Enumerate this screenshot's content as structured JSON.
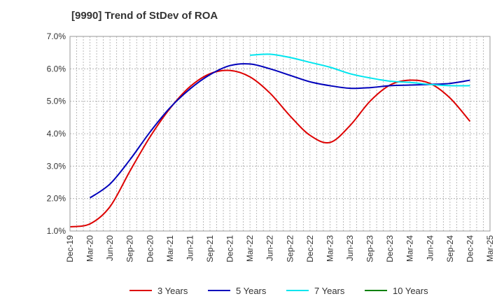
{
  "chart_data": {
    "type": "line",
    "title": "[9990]  Trend of StDev of ROA",
    "xlabel": "",
    "ylabel": "",
    "ylim": [
      1.0,
      7.0
    ],
    "y_ticks": [
      "1.0%",
      "2.0%",
      "3.0%",
      "4.0%",
      "5.0%",
      "6.0%",
      "7.0%"
    ],
    "y_tick_values": [
      1,
      2,
      3,
      4,
      5,
      6,
      7
    ],
    "x_ticks": [
      "Dec-19",
      "Mar-20",
      "Jun-20",
      "Sep-20",
      "Dec-20",
      "Mar-21",
      "Jun-21",
      "Sep-21",
      "Dec-21",
      "Mar-22",
      "Jun-22",
      "Sep-22",
      "Dec-22",
      "Mar-23",
      "Jun-23",
      "Sep-23",
      "Dec-23",
      "Mar-24",
      "Jun-24",
      "Sep-24",
      "Dec-24",
      "Mar-25"
    ],
    "grid": true,
    "legend_position": "bottom",
    "series": [
      {
        "name": "3 Years",
        "color": "#dd0000",
        "points": [
          [
            "Dec-19",
            1.13
          ],
          [
            "Mar-20",
            1.22
          ],
          [
            "Jun-20",
            1.75
          ],
          [
            "Sep-20",
            2.85
          ],
          [
            "Dec-20",
            3.9
          ],
          [
            "Mar-21",
            4.78
          ],
          [
            "Jun-21",
            5.45
          ],
          [
            "Sep-21",
            5.85
          ],
          [
            "Dec-21",
            5.95
          ],
          [
            "Mar-22",
            5.75
          ],
          [
            "Jun-22",
            5.25
          ],
          [
            "Sep-22",
            4.55
          ],
          [
            "Dec-22",
            3.95
          ],
          [
            "Mar-23",
            3.73
          ],
          [
            "Jun-23",
            4.25
          ],
          [
            "Sep-23",
            5.0
          ],
          [
            "Dec-23",
            5.5
          ],
          [
            "Mar-24",
            5.65
          ],
          [
            "Jun-24",
            5.55
          ],
          [
            "Sep-24",
            5.1
          ],
          [
            "Dec-24",
            4.38
          ]
        ]
      },
      {
        "name": "5 Years",
        "color": "#0000bb",
        "points": [
          [
            "Mar-20",
            2.02
          ],
          [
            "Jun-20",
            2.45
          ],
          [
            "Sep-20",
            3.2
          ],
          [
            "Dec-20",
            4.05
          ],
          [
            "Mar-21",
            4.8
          ],
          [
            "Jun-21",
            5.38
          ],
          [
            "Sep-21",
            5.82
          ],
          [
            "Dec-21",
            6.1
          ],
          [
            "Mar-22",
            6.15
          ],
          [
            "Jun-22",
            6.0
          ],
          [
            "Sep-22",
            5.8
          ],
          [
            "Dec-22",
            5.6
          ],
          [
            "Mar-23",
            5.48
          ],
          [
            "Jun-23",
            5.4
          ],
          [
            "Sep-23",
            5.42
          ],
          [
            "Dec-23",
            5.48
          ],
          [
            "Mar-24",
            5.5
          ],
          [
            "Jun-24",
            5.52
          ],
          [
            "Sep-24",
            5.55
          ],
          [
            "Dec-24",
            5.65
          ]
        ]
      },
      {
        "name": "7 Years",
        "color": "#00e5ee",
        "points": [
          [
            "Mar-22",
            6.42
          ],
          [
            "Jun-22",
            6.45
          ],
          [
            "Sep-22",
            6.35
          ],
          [
            "Dec-22",
            6.2
          ],
          [
            "Mar-23",
            6.05
          ],
          [
            "Jun-23",
            5.85
          ],
          [
            "Sep-23",
            5.72
          ],
          [
            "Dec-23",
            5.62
          ],
          [
            "Mar-24",
            5.58
          ],
          [
            "Jun-24",
            5.52
          ],
          [
            "Sep-24",
            5.48
          ],
          [
            "Dec-24",
            5.48
          ]
        ]
      },
      {
        "name": "10 Years",
        "color": "#008000",
        "points": []
      }
    ]
  }
}
